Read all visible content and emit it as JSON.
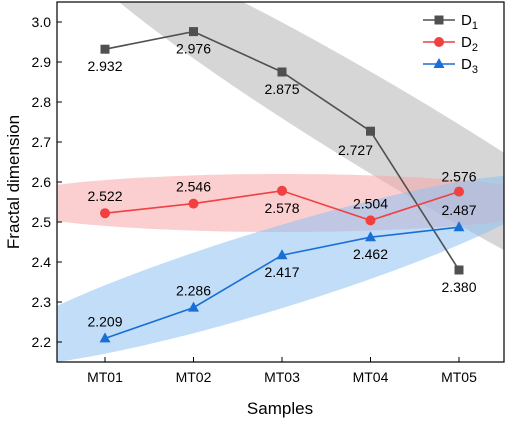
{
  "chart_data": {
    "type": "line",
    "xlabel": "Samples",
    "ylabel": "Fractal dimension",
    "categories": [
      "MT01",
      "MT02",
      "MT03",
      "MT04",
      "MT05"
    ],
    "ylim": [
      2.15,
      3.05
    ],
    "yticks": [
      "2.2",
      "2.3",
      "2.4",
      "2.5",
      "2.6",
      "2.7",
      "2.8",
      "2.9",
      "3.0"
    ],
    "grid": false,
    "legend_position": "top-right",
    "series": [
      {
        "name": "D1",
        "legend_base": "D",
        "legend_sub": "1",
        "color": "#505050",
        "marker": "square",
        "band_color": "#b4b4b4",
        "values": [
          2.932,
          2.976,
          2.875,
          2.727,
          2.38
        ],
        "labels": [
          "2.932",
          "2.976",
          "2.875",
          "2.727",
          "2.380"
        ]
      },
      {
        "name": "D2",
        "legend_base": "D",
        "legend_sub": "2",
        "color": "#f04040",
        "marker": "circle",
        "band_color": "#f7a8a8",
        "values": [
          2.522,
          2.546,
          2.578,
          2.504,
          2.576
        ],
        "labels": [
          "2.522",
          "2.546",
          "2.578",
          "2.504",
          "2.576"
        ]
      },
      {
        "name": "D3",
        "legend_base": "D",
        "legend_sub": "3",
        "color": "#1a6fd6",
        "marker": "triangle",
        "band_color": "#8ec1f2",
        "values": [
          2.209,
          2.286,
          2.417,
          2.462,
          2.487
        ],
        "labels": [
          "2.209",
          "2.286",
          "2.417",
          "2.462",
          "2.487"
        ]
      }
    ]
  }
}
